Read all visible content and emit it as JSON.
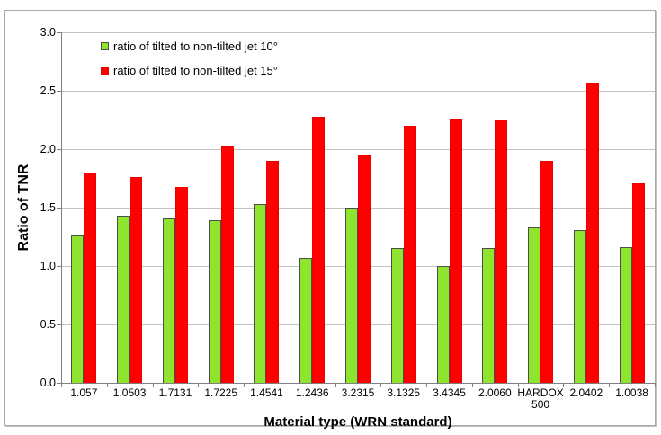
{
  "chart_data": {
    "type": "bar",
    "title": "",
    "ylabel": "Ratio of TNR",
    "xlabel": "Material type (WRN standard)",
    "ylim": [
      0,
      3
    ],
    "ytick_step": 0.5,
    "ytick_labels": [
      "0.0",
      "0.5",
      "1.0",
      "1.5",
      "2.0",
      "2.5",
      "3.0"
    ],
    "grid": true,
    "legend_position": "inside-top-left",
    "categories": [
      "1.057",
      "1.0503",
      "1.7131",
      "1.7225",
      "1.4541",
      "1.2436",
      "3.2315",
      "3.1325",
      "3.4345",
      "2.0060",
      "HARDOX 500",
      "2.0402",
      "1.0038"
    ],
    "series": [
      {
        "name": "ratio of tilted to non-tilted jet 10°",
        "color": "#8FE52D",
        "border_color": "#4D4D4D",
        "values": [
          1.26,
          1.43,
          1.41,
          1.39,
          1.53,
          1.07,
          1.5,
          1.15,
          1.0,
          1.15,
          1.33,
          1.31,
          1.16
        ]
      },
      {
        "name": "ratio of tilted to non-tilted jet 15°",
        "color": "#FF0000",
        "border_color": "#EE0000",
        "values": [
          1.8,
          1.76,
          1.68,
          2.02,
          1.9,
          2.28,
          1.95,
          2.2,
          2.26,
          2.25,
          1.9,
          2.57,
          1.71
        ]
      }
    ],
    "axis_color": "#808080",
    "gridline_color": "#C3C3C3"
  }
}
